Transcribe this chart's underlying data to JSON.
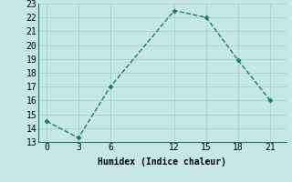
{
  "x": [
    0,
    3,
    6,
    12,
    15,
    18,
    21
  ],
  "y": [
    14.5,
    13.3,
    17.0,
    22.5,
    22.0,
    18.9,
    16.0
  ],
  "line_color": "#1a7a6e",
  "marker": "D",
  "marker_size": 2.5,
  "line_width": 1.0,
  "line_style": "--",
  "xlabel": "Humidex (Indice chaleur)",
  "xlabel_fontsize": 7,
  "xlim": [
    -0.8,
    22.5
  ],
  "ylim": [
    13,
    23
  ],
  "yticks": [
    13,
    14,
    15,
    16,
    17,
    18,
    19,
    20,
    21,
    22,
    23
  ],
  "xticks": [
    0,
    3,
    6,
    12,
    15,
    18,
    21
  ],
  "xtick_labels": [
    "0",
    "3",
    "6",
    "12",
    "15",
    "18",
    "21"
  ],
  "bg_color": "#c5e8e0",
  "grid_color": "#a8d5cc",
  "tick_fontsize": 7,
  "font_family": "monospace"
}
